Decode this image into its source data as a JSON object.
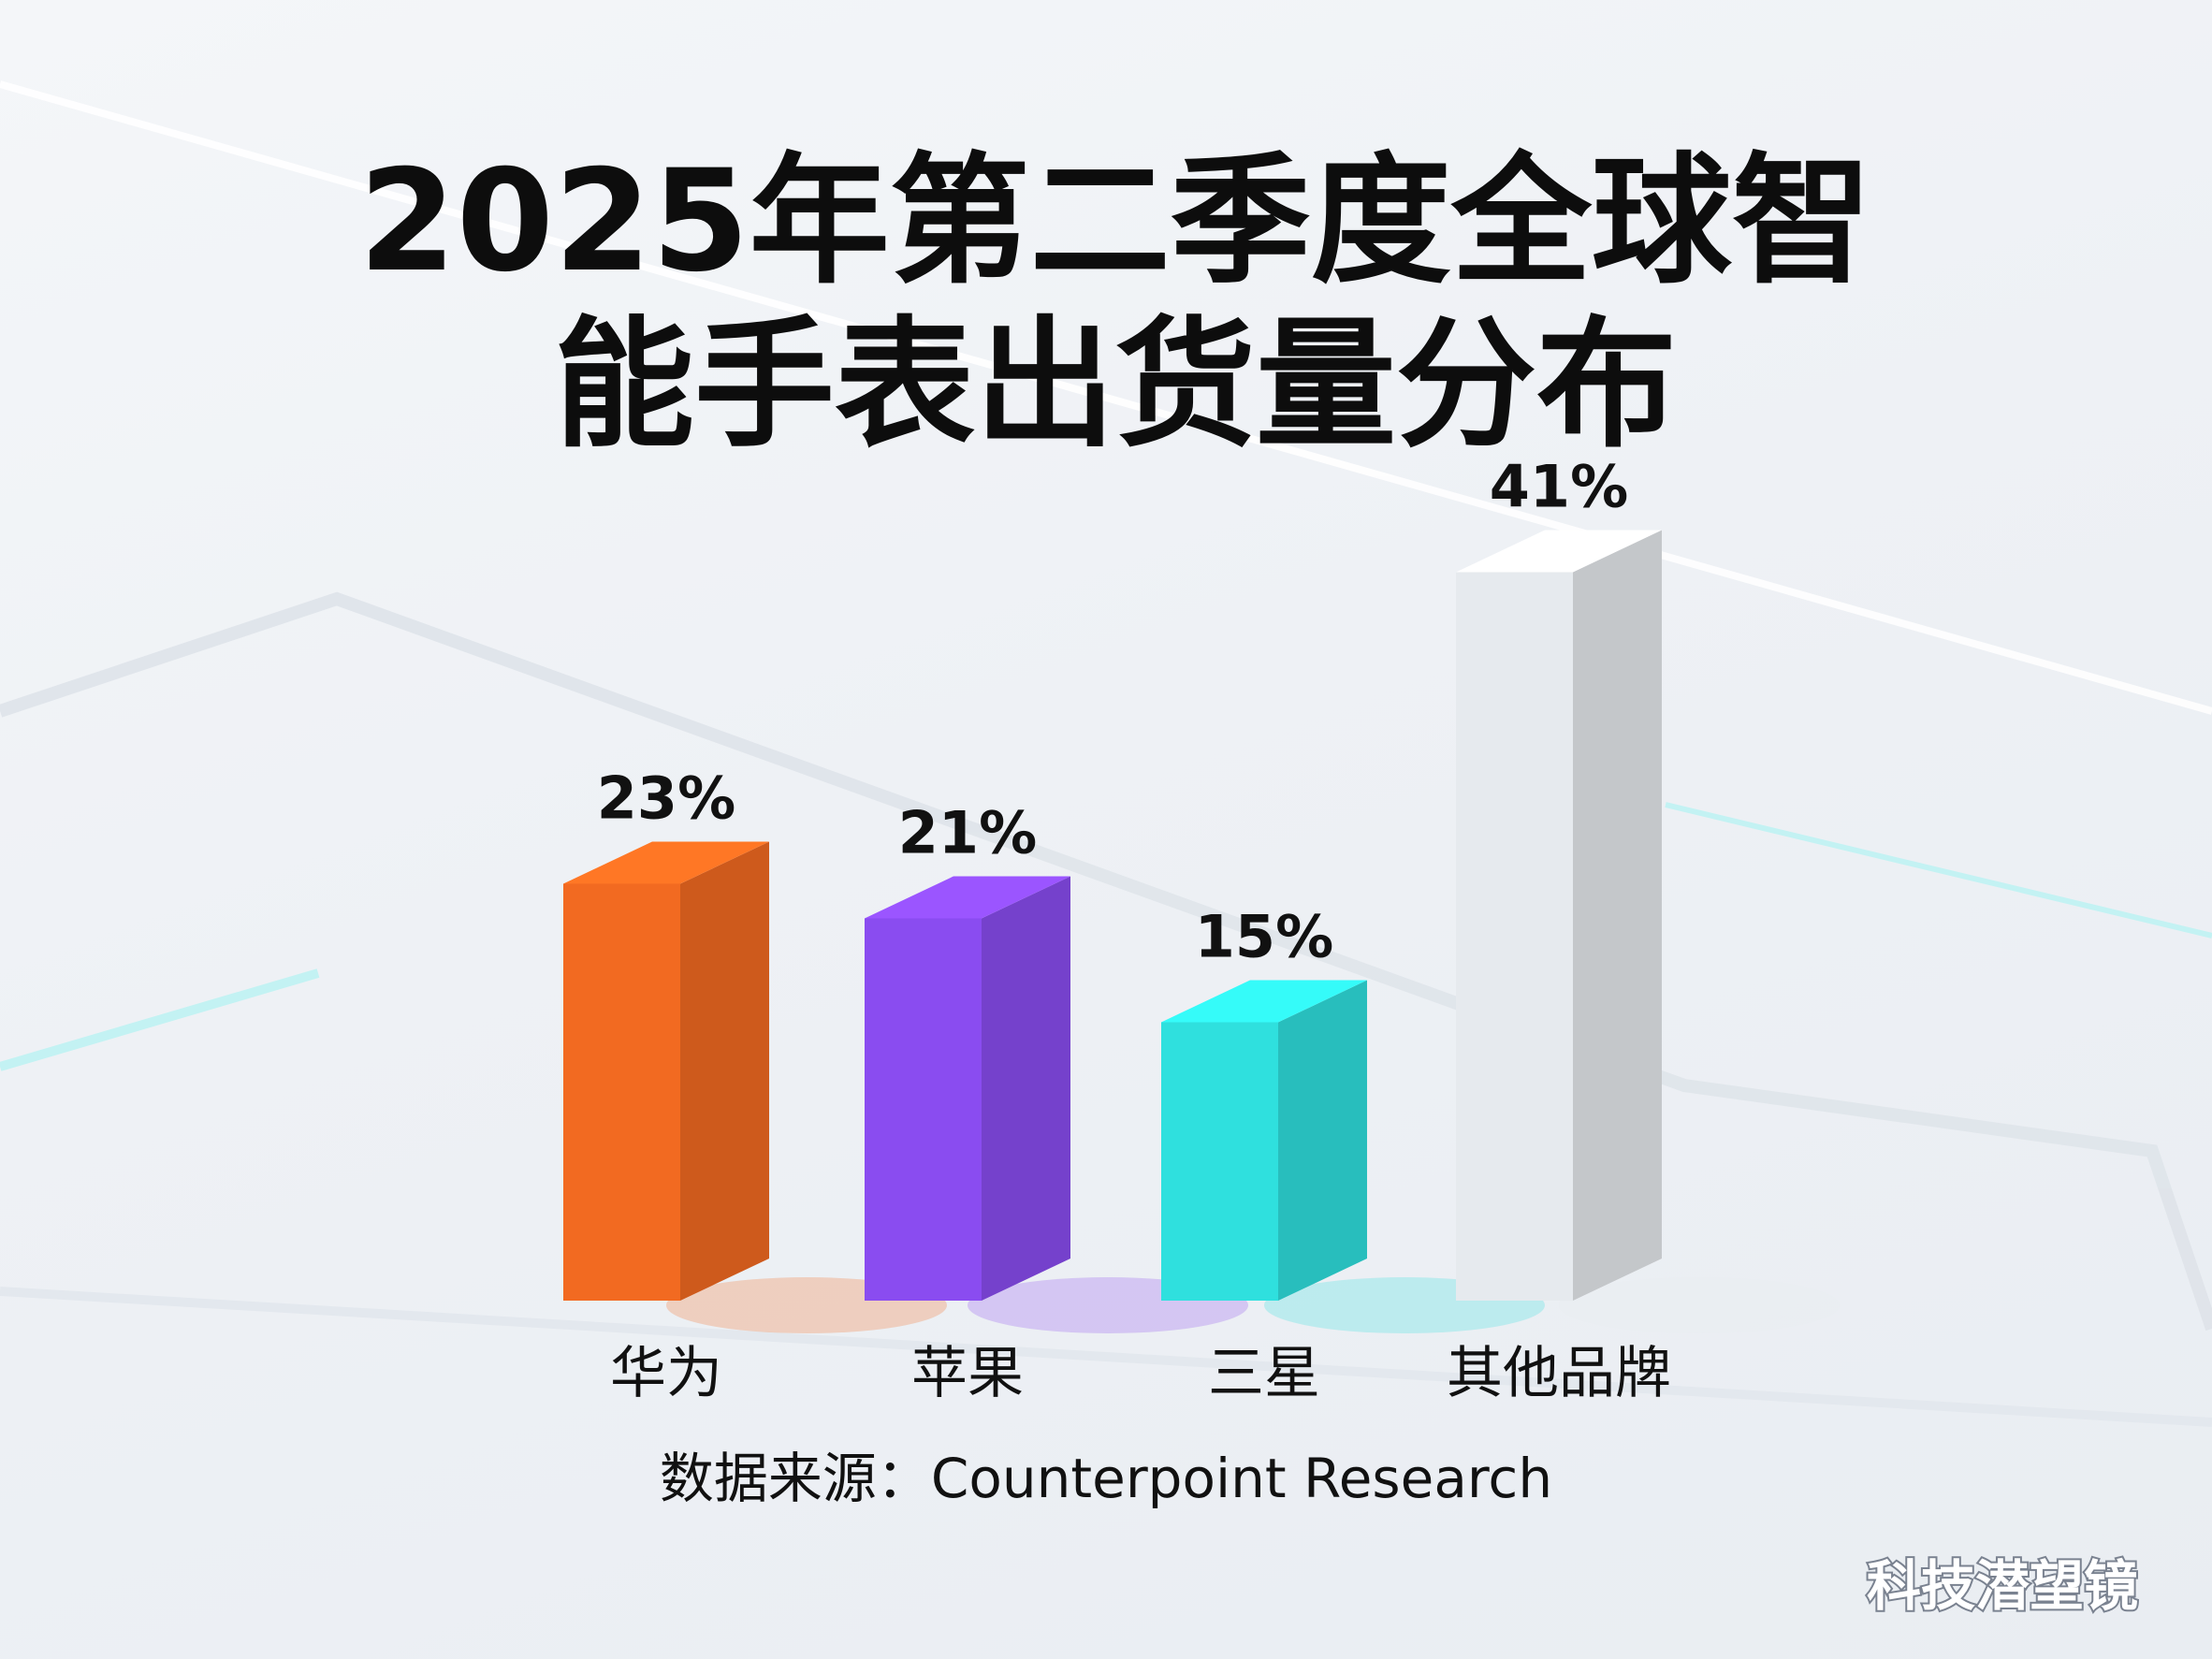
{
  "chart_data": {
    "type": "bar3d",
    "title": "2025年第二季度全球智能手表出货量分布",
    "categories": [
      "华为",
      "苹果",
      "三星",
      "其他品牌"
    ],
    "values": [
      23,
      21,
      15,
      41
    ],
    "value_labels": [
      "23%",
      "21%",
      "15%",
      "41%"
    ],
    "colors": [
      "#f26a21",
      "#8a4cf0",
      "#2fe0de",
      "#e6eaee"
    ],
    "source": "数据来源：Counterpoint Research"
  },
  "watermark": "科技潜望镜"
}
